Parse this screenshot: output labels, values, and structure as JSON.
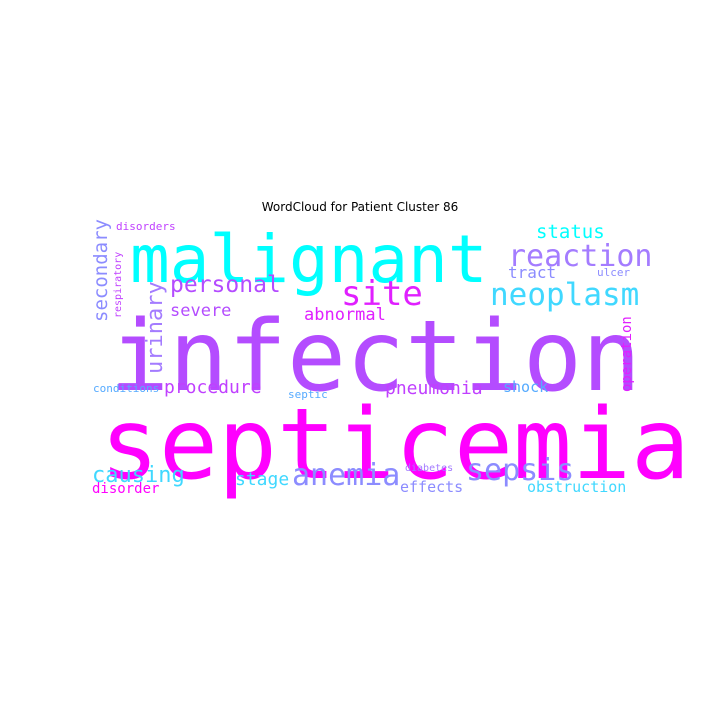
{
  "chart_data": {
    "type": "wordcloud",
    "title": "WordCloud for Patient Cluster 86",
    "palette": {
      "cyan": "#00ffff",
      "light_blue": "#55aaff",
      "sky": "#40d8ff",
      "lavender": "#8c8cff",
      "periwinkle": "#a47cff",
      "violet": "#b44cff",
      "purple": "#c040ff",
      "magenta": "#ff00ff",
      "pink_magenta": "#e020ff"
    },
    "words": [
      {
        "text": "infection",
        "weight": 1.0,
        "color": "#b44cff",
        "orientation": "horizontal"
      },
      {
        "text": "septicemia",
        "weight": 0.96,
        "color": "#ff00ff",
        "orientation": "horizontal"
      },
      {
        "text": "malignant",
        "weight": 0.8,
        "color": "#00ffff",
        "orientation": "horizontal"
      },
      {
        "text": "neoplasm",
        "weight": 0.4,
        "color": "#40d8ff",
        "orientation": "horizontal"
      },
      {
        "text": "reaction",
        "weight": 0.38,
        "color": "#a47cff",
        "orientation": "horizontal"
      },
      {
        "text": "site",
        "weight": 0.4,
        "color": "#e020ff",
        "orientation": "horizontal"
      },
      {
        "text": "sepsis",
        "weight": 0.36,
        "color": "#8c8cff",
        "orientation": "horizontal"
      },
      {
        "text": "anemia",
        "weight": 0.36,
        "color": "#8c8cff",
        "orientation": "horizontal"
      },
      {
        "text": "personal",
        "weight": 0.3,
        "color": "#b44cff",
        "orientation": "horizontal"
      },
      {
        "text": "causing",
        "weight": 0.28,
        "color": "#40d8ff",
        "orientation": "horizontal"
      },
      {
        "text": "urinary",
        "weight": 0.26,
        "color": "#a47cff",
        "orientation": "vertical"
      },
      {
        "text": "secondary",
        "weight": 0.24,
        "color": "#8c8cff",
        "orientation": "vertical"
      },
      {
        "text": "status",
        "weight": 0.24,
        "color": "#00ffff",
        "orientation": "horizontal"
      },
      {
        "text": "procedure",
        "weight": 0.22,
        "color": "#c040ff",
        "orientation": "horizontal"
      },
      {
        "text": "pneumonia",
        "weight": 0.22,
        "color": "#c040ff",
        "orientation": "horizontal"
      },
      {
        "text": "stage",
        "weight": 0.22,
        "color": "#40d8ff",
        "orientation": "horizontal"
      },
      {
        "text": "severe",
        "weight": 0.21,
        "color": "#b44cff",
        "orientation": "horizontal"
      },
      {
        "text": "abnormal",
        "weight": 0.21,
        "color": "#e020ff",
        "orientation": "horizontal"
      },
      {
        "text": "tract",
        "weight": 0.21,
        "color": "#8c8cff",
        "orientation": "horizontal"
      },
      {
        "text": "shock",
        "weight": 0.18,
        "color": "#55aaff",
        "orientation": "horizontal"
      },
      {
        "text": "obstruction",
        "weight": 0.17,
        "color": "#40d8ff",
        "orientation": "horizontal"
      },
      {
        "text": "effects",
        "weight": 0.17,
        "color": "#8c8cff",
        "orientation": "horizontal"
      },
      {
        "text": "disorder",
        "weight": 0.17,
        "color": "#ff00ff",
        "orientation": "horizontal"
      },
      {
        "text": "operation",
        "weight": 0.16,
        "color": "#e020ff",
        "orientation": "vertical"
      },
      {
        "text": "conditions",
        "weight": 0.12,
        "color": "#55aaff",
        "orientation": "horizontal"
      },
      {
        "text": "disorders",
        "weight": 0.12,
        "color": "#c040ff",
        "orientation": "horizontal"
      },
      {
        "text": "respiratory",
        "weight": 0.11,
        "color": "#c040ff",
        "orientation": "vertical"
      },
      {
        "text": "ulcer",
        "weight": 0.12,
        "color": "#8c8cff",
        "orientation": "horizontal"
      },
      {
        "text": "diabetes",
        "weight": 0.11,
        "color": "#a47cff",
        "orientation": "horizontal"
      },
      {
        "text": "septic",
        "weight": 0.11,
        "color": "#55aaff",
        "orientation": "horizontal"
      }
    ]
  }
}
